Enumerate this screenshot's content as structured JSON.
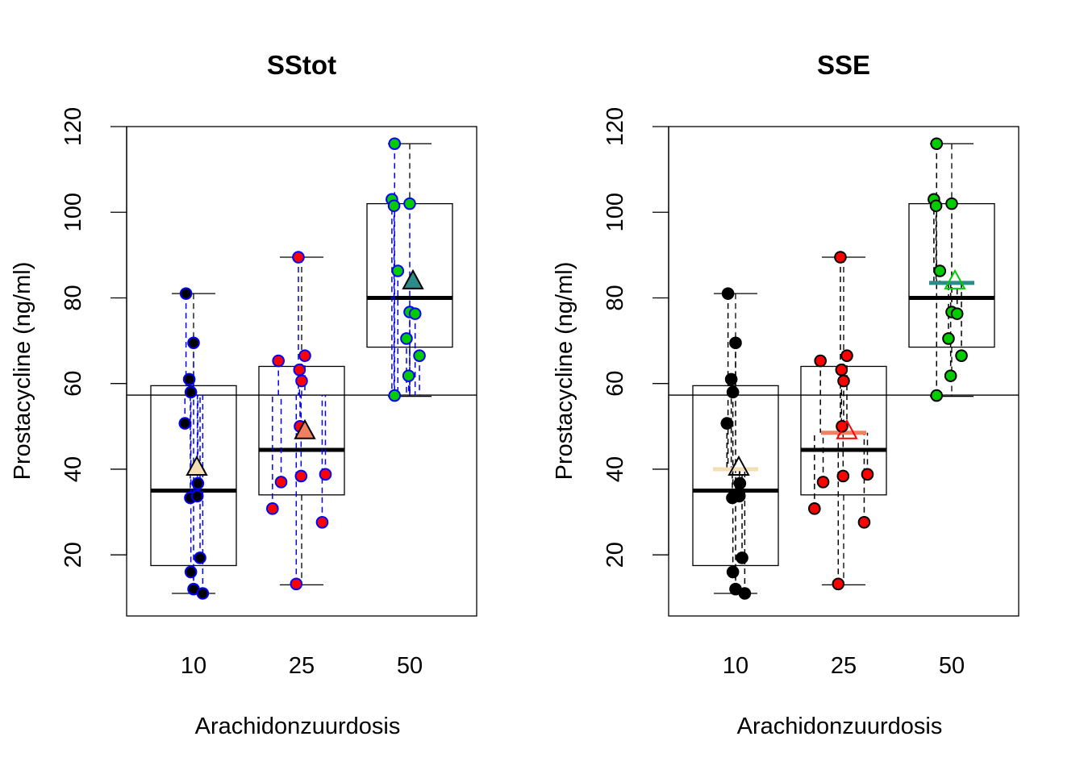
{
  "chart_data": [
    {
      "type": "box",
      "title": "SStot",
      "xlabel": "Arachidonzuurdosis",
      "ylabel": "Prostacycline (ng/ml)",
      "categories": [
        "10",
        "25",
        "50"
      ],
      "yticks": [
        "20",
        "40",
        "60",
        "80",
        "100",
        "120"
      ],
      "ylim": [
        5,
        120
      ],
      "grand_mean": 57.3,
      "residual_style": "deviation from grand mean",
      "residual_line_color": "#0000ff",
      "point_outline_color": "#0000ff",
      "box_stats": [
        {
          "category": "10",
          "min": 11,
          "q1": 17.5,
          "median": 35,
          "q3": 59.5,
          "max": 81,
          "mean": 40
        },
        {
          "category": "25",
          "min": 13,
          "q1": 34,
          "median": 44.5,
          "q3": 64,
          "max": 89.5,
          "mean": 48.5
        },
        {
          "category": "50",
          "min": 57,
          "q1": 68.5,
          "median": 80,
          "q3": 102,
          "max": 116,
          "mean": 83.5
        }
      ],
      "series": [
        {
          "category": "10",
          "color": "#000000",
          "mean_color": "#f5deb3",
          "points": [
            {
              "x": 9.3,
              "y": 81
            },
            {
              "x": 9.6,
              "y": 61
            },
            {
              "x": 9.75,
              "y": 58
            },
            {
              "x": 9.2,
              "y": 50.7
            },
            {
              "x": 9.7,
              "y": 33.3
            },
            {
              "x": 9.75,
              "y": 16
            },
            {
              "x": 10,
              "y": 12
            },
            {
              "x": 10,
              "y": 69.5
            },
            {
              "x": 10.4,
              "y": 36.7
            },
            {
              "x": 10.35,
              "y": 33.7
            },
            {
              "x": 10.6,
              "y": 19.3
            },
            {
              "x": 10.85,
              "y": 11
            }
          ]
        },
        {
          "category": "25",
          "color": "#ff0000",
          "mean_color": "#f08060",
          "points": [
            {
              "x": 24.7,
              "y": 89.5
            },
            {
              "x": 22.85,
              "y": 65.3
            },
            {
              "x": 25.3,
              "y": 66.5
            },
            {
              "x": 24.8,
              "y": 63.2
            },
            {
              "x": 25,
              "y": 60.6
            },
            {
              "x": 24.85,
              "y": 50
            },
            {
              "x": 23.1,
              "y": 37
            },
            {
              "x": 24.95,
              "y": 38.4
            },
            {
              "x": 27.2,
              "y": 38.8
            },
            {
              "x": 22.3,
              "y": 30.8
            },
            {
              "x": 26.9,
              "y": 27.6
            },
            {
              "x": 24.5,
              "y": 13.2
            }
          ]
        },
        {
          "category": "50",
          "color": "#00cc00",
          "mean_color": "#2e8b8b",
          "points": [
            {
              "x": 48.6,
              "y": 116
            },
            {
              "x": 48.35,
              "y": 103
            },
            {
              "x": 48.55,
              "y": 101.5
            },
            {
              "x": 50,
              "y": 102
            },
            {
              "x": 48.9,
              "y": 86.3
            },
            {
              "x": 50,
              "y": 76.7
            },
            {
              "x": 50.5,
              "y": 76.3
            },
            {
              "x": 49.7,
              "y": 70.5
            },
            {
              "x": 50.9,
              "y": 66.5
            },
            {
              "x": 49.9,
              "y": 61.8
            },
            {
              "x": 48.6,
              "y": 57.2
            }
          ]
        }
      ]
    },
    {
      "type": "box",
      "title": "SSE",
      "xlabel": "Arachidonzuurdosis",
      "ylabel": "Prostacycline (ng/ml)",
      "categories": [
        "10",
        "25",
        "50"
      ],
      "yticks": [
        "20",
        "40",
        "60",
        "80",
        "100",
        "120"
      ],
      "ylim": [
        5,
        120
      ],
      "grand_mean": 57.3,
      "residual_style": "deviation from group mean",
      "residual_line_color": "#000000",
      "point_outline_color": "#000000",
      "box_stats": [
        {
          "category": "10",
          "min": 11,
          "q1": 17.5,
          "median": 35,
          "q3": 59.5,
          "max": 81,
          "mean": 40
        },
        {
          "category": "25",
          "min": 13,
          "q1": 34,
          "median": 44.5,
          "q3": 64,
          "max": 89.5,
          "mean": 48.5
        },
        {
          "category": "50",
          "min": 57,
          "q1": 68.5,
          "median": 80,
          "q3": 102,
          "max": 116,
          "mean": 83.5
        }
      ],
      "series": [
        {
          "category": "10",
          "color": "#000000",
          "mean_color": "#f5deb3",
          "points": [
            {
              "x": 9.3,
              "y": 81
            },
            {
              "x": 9.6,
              "y": 61
            },
            {
              "x": 9.75,
              "y": 58
            },
            {
              "x": 9.2,
              "y": 50.7
            },
            {
              "x": 9.7,
              "y": 33.3
            },
            {
              "x": 9.75,
              "y": 16
            },
            {
              "x": 10,
              "y": 12
            },
            {
              "x": 10,
              "y": 69.5
            },
            {
              "x": 10.4,
              "y": 36.7
            },
            {
              "x": 10.35,
              "y": 33.7
            },
            {
              "x": 10.6,
              "y": 19.3
            },
            {
              "x": 10.85,
              "y": 11
            }
          ]
        },
        {
          "category": "25",
          "color": "#ff0000",
          "mean_color": "#f08060",
          "points": [
            {
              "x": 24.7,
              "y": 89.5
            },
            {
              "x": 22.85,
              "y": 65.3
            },
            {
              "x": 25.3,
              "y": 66.5
            },
            {
              "x": 24.8,
              "y": 63.2
            },
            {
              "x": 25,
              "y": 60.6
            },
            {
              "x": 24.85,
              "y": 50
            },
            {
              "x": 23.1,
              "y": 37
            },
            {
              "x": 24.95,
              "y": 38.4
            },
            {
              "x": 27.2,
              "y": 38.8
            },
            {
              "x": 22.3,
              "y": 30.8
            },
            {
              "x": 26.9,
              "y": 27.6
            },
            {
              "x": 24.5,
              "y": 13.2
            }
          ]
        },
        {
          "category": "50",
          "color": "#00cc00",
          "mean_color": "#2e8b8b",
          "points": [
            {
              "x": 48.6,
              "y": 116
            },
            {
              "x": 48.35,
              "y": 103
            },
            {
              "x": 48.55,
              "y": 101.5
            },
            {
              "x": 50,
              "y": 102
            },
            {
              "x": 48.9,
              "y": 86.3
            },
            {
              "x": 50,
              "y": 76.7
            },
            {
              "x": 50.5,
              "y": 76.3
            },
            {
              "x": 49.7,
              "y": 70.5
            },
            {
              "x": 50.9,
              "y": 66.5
            },
            {
              "x": 49.9,
              "y": 61.8
            },
            {
              "x": 48.6,
              "y": 57.2
            }
          ]
        }
      ]
    }
  ]
}
